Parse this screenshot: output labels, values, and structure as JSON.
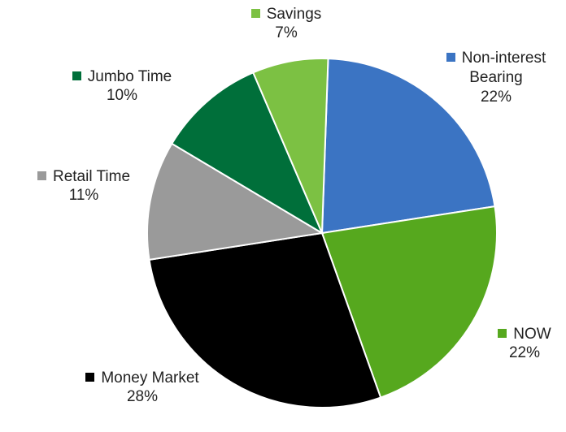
{
  "chart_data": {
    "type": "pie",
    "categories": [
      "Non-interest Bearing",
      "NOW",
      "Money Market",
      "Retail Time",
      "Jumbo Time",
      "Savings"
    ],
    "values": [
      22,
      22,
      28,
      11,
      10,
      7
    ],
    "value_labels": [
      "22%",
      "22%",
      "28%",
      "11%",
      "10%",
      "7%"
    ],
    "colors": [
      "#3b74c3",
      "#56a81e",
      "#000000",
      "#9a9a9a",
      "#006f3a",
      "#7cc143"
    ]
  }
}
